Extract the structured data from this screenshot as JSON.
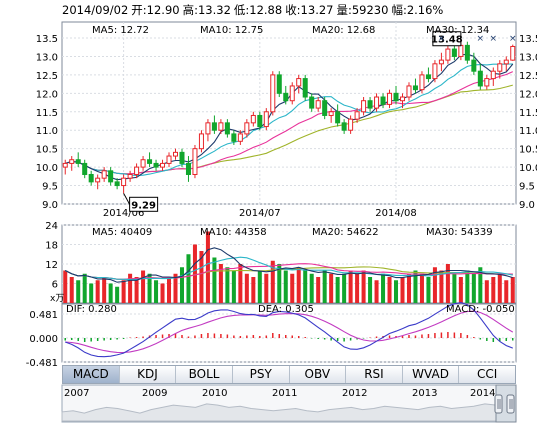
{
  "header": {
    "date": "2014/09/02",
    "open": "开:12.90",
    "high": "高:13.32",
    "low": "低:12.88",
    "close": "收:13.27",
    "volume": "量:59230",
    "change": "幅:2.16%"
  },
  "colors": {
    "up": "#e8262a",
    "down": "#11a62d",
    "ma5": "#1d3a6b",
    "ma10": "#2cb6c9",
    "ma20": "#e8339a",
    "ma30": "#a0b42a",
    "grid": "#d9dde3",
    "axis": "#7f8a99"
  },
  "price_legend": {
    "ma5": "MA5: 12.72",
    "ma10": "MA10: 12.75",
    "ma20": "MA20: 12.68",
    "ma30": "MA30: 12.34"
  },
  "volume_legend": {
    "ma5": "MA5: 40409",
    "ma10": "MA10: 44358",
    "ma20": "MA20: 54622",
    "ma30": "MA30: 54339"
  },
  "macd_legend": {
    "dif": "DIF: 0.280",
    "dea": "DEA: 0.305",
    "macd": "MACD: -0.050",
    "unit": "x万"
  },
  "tabs": [
    "MACD",
    "KDJ",
    "BOLL",
    "PSY",
    "OBV",
    "RSI",
    "WVAD",
    "CCI"
  ],
  "active_tab": "MACD",
  "chart_data": [
    {
      "type": "candlestick",
      "x_labels": [
        "2014/06",
        "2014/07",
        "2014/08"
      ],
      "x_label_positions": [
        9,
        30,
        51
      ],
      "ylim": [
        9.0,
        13.5
      ],
      "y_ticks": [
        "13.5",
        "13.0",
        "12.5",
        "12.0",
        "11.5",
        "11.0",
        "10.5",
        "10.0",
        "9.5",
        "9.0"
      ],
      "annotations": [
        {
          "text": "9.29",
          "index": 9,
          "value": 9.29
        },
        {
          "text": "13.48",
          "index": 61,
          "value": 13.48
        }
      ],
      "candles": [
        [
          10.0,
          10.2,
          9.8,
          10.1
        ],
        [
          10.1,
          10.3,
          9.9,
          10.2
        ],
        [
          10.2,
          10.4,
          10.0,
          10.1
        ],
        [
          10.1,
          10.2,
          9.7,
          9.8
        ],
        [
          9.8,
          9.9,
          9.5,
          9.6
        ],
        [
          9.6,
          9.8,
          9.4,
          9.7
        ],
        [
          9.7,
          10.0,
          9.6,
          9.9
        ],
        [
          9.9,
          10.0,
          9.5,
          9.6
        ],
        [
          9.6,
          9.7,
          9.4,
          9.5
        ],
        [
          9.5,
          9.8,
          9.29,
          9.7
        ],
        [
          9.7,
          9.9,
          9.6,
          9.8
        ],
        [
          9.8,
          10.1,
          9.7,
          10.0
        ],
        [
          10.0,
          10.3,
          9.9,
          10.2
        ],
        [
          10.2,
          10.4,
          10.0,
          10.1
        ],
        [
          10.1,
          10.2,
          9.9,
          10.0
        ],
        [
          10.0,
          10.2,
          9.9,
          10.1
        ],
        [
          10.1,
          10.4,
          10.0,
          10.3
        ],
        [
          10.3,
          10.5,
          10.2,
          10.4
        ],
        [
          10.4,
          10.5,
          10.0,
          10.1
        ],
        [
          10.1,
          10.3,
          9.6,
          9.8
        ],
        [
          9.8,
          10.6,
          9.7,
          10.5
        ],
        [
          10.5,
          11.0,
          10.4,
          10.9
        ],
        [
          10.9,
          11.3,
          10.7,
          11.2
        ],
        [
          11.2,
          11.4,
          10.9,
          11.0
        ],
        [
          11.0,
          11.3,
          10.9,
          11.2
        ],
        [
          11.2,
          11.3,
          10.8,
          10.9
        ],
        [
          10.9,
          11.0,
          10.6,
          10.7
        ],
        [
          10.7,
          11.0,
          10.6,
          10.9
        ],
        [
          10.9,
          11.3,
          10.8,
          11.2
        ],
        [
          11.2,
          11.5,
          11.1,
          11.4
        ],
        [
          11.4,
          11.5,
          11.0,
          11.1
        ],
        [
          11.1,
          11.6,
          11.0,
          11.5
        ],
        [
          11.5,
          12.6,
          11.4,
          12.5
        ],
        [
          12.5,
          12.6,
          11.9,
          12.0
        ],
        [
          12.0,
          12.2,
          11.7,
          11.8
        ],
        [
          11.8,
          12.3,
          11.7,
          12.2
        ],
        [
          12.2,
          12.5,
          12.0,
          12.4
        ],
        [
          12.4,
          12.5,
          11.8,
          11.9
        ],
        [
          11.9,
          12.0,
          11.5,
          11.6
        ],
        [
          11.6,
          11.9,
          11.5,
          11.8
        ],
        [
          11.8,
          11.9,
          11.3,
          11.4
        ],
        [
          11.4,
          11.6,
          11.2,
          11.5
        ],
        [
          11.5,
          11.7,
          11.1,
          11.2
        ],
        [
          11.2,
          11.3,
          10.9,
          11.0
        ],
        [
          11.0,
          11.4,
          10.9,
          11.3
        ],
        [
          11.3,
          11.6,
          11.2,
          11.5
        ],
        [
          11.5,
          11.9,
          11.4,
          11.8
        ],
        [
          11.8,
          11.9,
          11.5,
          11.6
        ],
        [
          11.6,
          12.0,
          11.5,
          11.9
        ],
        [
          11.9,
          12.0,
          11.6,
          11.7
        ],
        [
          11.7,
          12.1,
          11.6,
          12.0
        ],
        [
          12.0,
          12.2,
          11.7,
          11.8
        ],
        [
          11.8,
          12.0,
          11.6,
          11.9
        ],
        [
          11.9,
          12.3,
          11.8,
          12.2
        ],
        [
          12.2,
          12.4,
          12.0,
          12.1
        ],
        [
          12.1,
          12.6,
          12.0,
          12.5
        ],
        [
          12.5,
          12.7,
          12.3,
          12.4
        ],
        [
          12.4,
          12.9,
          12.3,
          12.8
        ],
        [
          12.8,
          13.1,
          12.6,
          12.9
        ],
        [
          12.9,
          13.3,
          12.8,
          13.2
        ],
        [
          13.2,
          13.3,
          12.9,
          13.0
        ],
        [
          13.0,
          13.48,
          12.9,
          13.3
        ],
        [
          13.3,
          13.4,
          12.8,
          12.9
        ],
        [
          12.9,
          13.1,
          12.5,
          12.6
        ],
        [
          12.6,
          12.8,
          12.1,
          12.2
        ],
        [
          12.2,
          12.5,
          12.1,
          12.4
        ],
        [
          12.4,
          12.7,
          12.2,
          12.6
        ],
        [
          12.6,
          12.9,
          12.4,
          12.8
        ],
        [
          12.8,
          13.0,
          12.6,
          12.9
        ],
        [
          12.9,
          13.32,
          12.88,
          13.27
        ]
      ]
    },
    {
      "type": "bar",
      "title": "volume",
      "ylim": [
        0,
        24
      ],
      "y_ticks": [
        "24",
        "18",
        "12",
        "6"
      ],
      "values": [
        10,
        8,
        7,
        9,
        6,
        7,
        8,
        6,
        5,
        7,
        9,
        8,
        10,
        9,
        7,
        6,
        8,
        9,
        11,
        15,
        18,
        16,
        22,
        14,
        12,
        11,
        10,
        12,
        9,
        8,
        10,
        9,
        13,
        12,
        10,
        9,
        11,
        10,
        9,
        8,
        10,
        9,
        8,
        9,
        10,
        9,
        10,
        8,
        7,
        9,
        8,
        7,
        8,
        9,
        10,
        9,
        8,
        11,
        10,
        12,
        9,
        8,
        10,
        9,
        11,
        7,
        8,
        9,
        7,
        8
      ]
    },
    {
      "type": "bar",
      "title": "MACD",
      "ylim": [
        -0.481,
        0.481
      ],
      "y_ticks": [
        "0.481",
        "0.000",
        "-0.481"
      ],
      "values": [
        -0.05,
        -0.04,
        -0.06,
        -0.08,
        -0.07,
        -0.06,
        -0.05,
        -0.04,
        -0.03,
        -0.02,
        0.01,
        0.02,
        0.03,
        0.05,
        0.06,
        0.07,
        0.08,
        0.09,
        0.06,
        0.03,
        0.05,
        0.08,
        0.1,
        0.09,
        0.08,
        0.07,
        0.05,
        0.04,
        0.05,
        0.06,
        0.04,
        0.05,
        0.1,
        0.08,
        0.06,
        0.05,
        0.04,
        0.02,
        -0.01,
        -0.02,
        -0.03,
        -0.05,
        -0.06,
        -0.07,
        -0.05,
        -0.03,
        -0.01,
        0.01,
        0.03,
        0.04,
        0.05,
        0.04,
        0.05,
        0.06,
        0.05,
        0.07,
        0.08,
        0.1,
        0.11,
        0.12,
        0.11,
        0.1,
        0.06,
        0.02,
        -0.03,
        -0.06,
        -0.08,
        -0.07,
        -0.06,
        -0.05
      ]
    },
    {
      "type": "area",
      "title": "history",
      "x_labels": [
        "2007",
        "2009",
        "2010",
        "2011",
        "2012",
        "2013",
        "2014"
      ],
      "values": [
        0.35,
        0.4,
        0.3,
        0.45,
        0.55,
        0.5,
        0.4,
        0.3,
        0.45,
        0.55,
        0.65,
        0.6,
        0.55,
        0.7,
        0.65,
        0.55,
        0.6,
        0.5,
        0.45,
        0.4,
        0.45,
        0.5,
        0.4,
        0.35,
        0.45,
        0.5,
        0.55,
        0.45,
        0.5,
        0.6,
        0.55,
        0.5,
        0.45,
        0.55,
        0.6,
        0.5,
        0.55,
        0.6,
        0.7,
        0.65
      ]
    }
  ]
}
